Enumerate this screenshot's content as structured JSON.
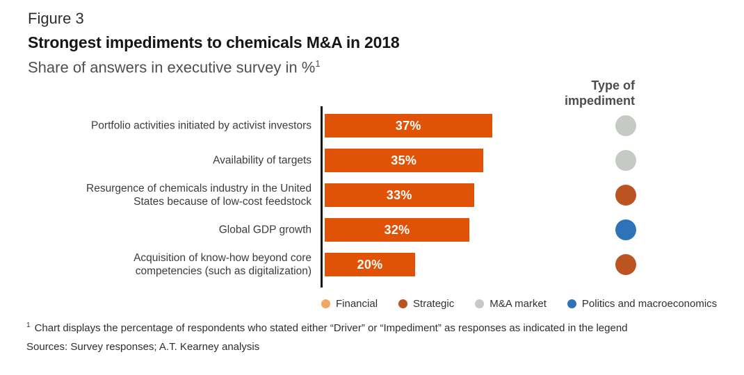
{
  "figure": {
    "label": "Figure 3",
    "title": "Strongest impediments to chemicals M&A in 2018",
    "subtitle": "Share of answers in executive survey in %",
    "subtitle_superscript": "1"
  },
  "type_column": {
    "header_lines": [
      "Type of",
      "impediment"
    ]
  },
  "chart_data": {
    "type": "bar",
    "orientation": "horizontal",
    "title": "Strongest impediments to chemicals M&A in 2018",
    "subtitle": "Share of answers in executive survey in %",
    "unit": "%",
    "xlim": [
      0,
      40
    ],
    "grid": false,
    "bar_color": "#E05306",
    "axis_color": "#151515",
    "categories": [
      "Portfolio activities initiated by activist investors",
      "Availability of targets",
      "Resurgence of chemicals industry in the United States because of low-cost feedstock",
      "Global GDP growth",
      "Acquisition of know-how beyond core competencies (such as digitalization)"
    ],
    "values": [
      37,
      35,
      33,
      32,
      20
    ],
    "rows": [
      {
        "label_lines": [
          "Portfolio activities initiated by activist investors"
        ],
        "value": 37,
        "value_label": "37%",
        "impediment_type": "M&A market"
      },
      {
        "label_lines": [
          "Availability of targets"
        ],
        "value": 35,
        "value_label": "35%",
        "impediment_type": "M&A market"
      },
      {
        "label_lines": [
          "Resurgence of chemicals industry in the United",
          "States because of low-cost feedstock"
        ],
        "value": 33,
        "value_label": "33%",
        "impediment_type": "Strategic"
      },
      {
        "label_lines": [
          "Global GDP growth"
        ],
        "value": 32,
        "value_label": "32%",
        "impediment_type": "Politics and macroeconomics"
      },
      {
        "label_lines": [
          "Acquisition of know-how beyond core",
          "competencies (such as digitalization)"
        ],
        "value": 20,
        "value_label": "20%",
        "impediment_type": "Strategic"
      }
    ]
  },
  "legend": {
    "items": [
      {
        "label": "Financial",
        "color": "#F1A75F"
      },
      {
        "label": "Strategic",
        "color": "#BC5422"
      },
      {
        "label": "M&A market",
        "color": "#C6CAC4"
      },
      {
        "label": "Politics and macroeconomics",
        "color": "#2E73B9"
      }
    ]
  },
  "footnotes": {
    "note_superscript": "1",
    "note": "Chart displays the percentage of respondents who stated either “Driver” or “Impediment” as responses as indicated in the legend",
    "sources": "Sources: Survey responses; A.T. Kearney analysis"
  }
}
